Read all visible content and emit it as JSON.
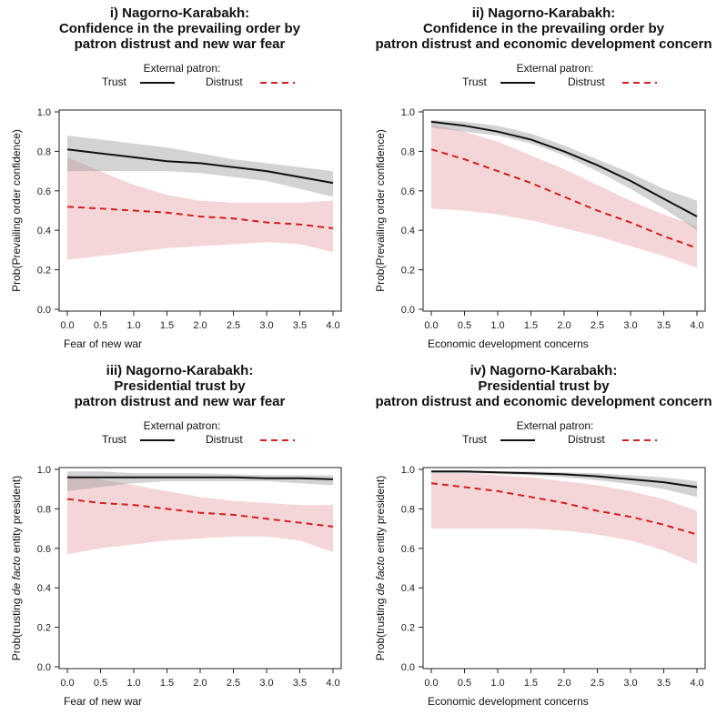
{
  "legend": {
    "title": "External patron:",
    "trust_label": "Trust",
    "distrust_label": "Distrust"
  },
  "colors": {
    "trust_line": "#111111",
    "trust_band": "#9e9e9e",
    "distrust_line": "#d21f1f",
    "distrust_band": "#e9a4a8"
  },
  "panels": [
    {
      "title_lines": [
        "i) Nagorno-Karabakh:",
        "Confidence in the prevailing order by",
        "patron distrust and new war fear"
      ],
      "xlabel": "Fear of new war",
      "ylabel": "Prob(Prevailing order confidence)"
    },
    {
      "title_lines": [
        "ii) Nagorno-Karabakh:",
        "Confidence in the prevailing order by",
        "patron distrust and economic development concern"
      ],
      "xlabel": "Economic development concerns",
      "ylabel": "Prob(Prevailing order confidence)"
    },
    {
      "title_lines": [
        "iii) Nagorno-Karabakh:",
        "Presidential trust by",
        "patron distrust and new war fear"
      ],
      "xlabel": "Fear of new war",
      "ylabel_parts": [
        "Prob(trusting ",
        "de facto",
        " entity president)"
      ]
    },
    {
      "title_lines": [
        "iv) Nagorno-Karabakh:",
        "Presidential trust by",
        "patron distrust and economic development concern"
      ],
      "xlabel": "Economic development concerns",
      "ylabel_parts": [
        "Prob(trusting ",
        "de facto",
        " entity president)"
      ]
    }
  ],
  "chart_data": [
    {
      "type": "line",
      "x": [
        0,
        0.5,
        1,
        1.5,
        2,
        2.5,
        3,
        3.5,
        4
      ],
      "xticks": [
        "0.0",
        "0.5",
        "1.0",
        "1.5",
        "2.0",
        "2.5",
        "3.0",
        "3.5",
        "4.0"
      ],
      "yticks": [
        "0.0",
        "0.2",
        "0.4",
        "0.6",
        "0.8",
        "1.0"
      ],
      "xlim": [
        0,
        4
      ],
      "ylim": [
        0,
        1
      ],
      "series": [
        {
          "name": "Trust",
          "style": "solid",
          "values": [
            0.81,
            0.79,
            0.77,
            0.75,
            0.74,
            0.72,
            0.7,
            0.67,
            0.64
          ],
          "lower": [
            0.7,
            0.7,
            0.7,
            0.7,
            0.69,
            0.67,
            0.65,
            0.61,
            0.57
          ],
          "upper": [
            0.88,
            0.86,
            0.84,
            0.82,
            0.79,
            0.76,
            0.74,
            0.72,
            0.7
          ]
        },
        {
          "name": "Distrust",
          "style": "dashed",
          "values": [
            0.52,
            0.51,
            0.5,
            0.49,
            0.47,
            0.46,
            0.44,
            0.43,
            0.41
          ],
          "lower": [
            0.25,
            0.27,
            0.29,
            0.31,
            0.32,
            0.33,
            0.34,
            0.33,
            0.29
          ],
          "upper": [
            0.77,
            0.7,
            0.63,
            0.58,
            0.55,
            0.54,
            0.54,
            0.54,
            0.55
          ]
        }
      ]
    },
    {
      "type": "line",
      "x": [
        0,
        0.5,
        1,
        1.5,
        2,
        2.5,
        3,
        3.5,
        4
      ],
      "xticks": [
        "0.0",
        "0.5",
        "1.0",
        "1.5",
        "2.0",
        "2.5",
        "3.0",
        "3.5",
        "4.0"
      ],
      "yticks": [
        "0.0",
        "0.2",
        "0.4",
        "0.6",
        "0.8",
        "1.0"
      ],
      "xlim": [
        0,
        4
      ],
      "ylim": [
        0,
        1
      ],
      "series": [
        {
          "name": "Trust",
          "style": "solid",
          "values": [
            0.95,
            0.93,
            0.9,
            0.86,
            0.8,
            0.73,
            0.65,
            0.56,
            0.47
          ],
          "lower": [
            0.92,
            0.9,
            0.88,
            0.84,
            0.78,
            0.7,
            0.61,
            0.51,
            0.4
          ],
          "upper": [
            0.96,
            0.95,
            0.93,
            0.89,
            0.83,
            0.76,
            0.69,
            0.61,
            0.55
          ]
        },
        {
          "name": "Distrust",
          "style": "dashed",
          "values": [
            0.81,
            0.76,
            0.7,
            0.64,
            0.57,
            0.5,
            0.44,
            0.37,
            0.31
          ],
          "lower": [
            0.51,
            0.5,
            0.48,
            0.45,
            0.41,
            0.37,
            0.32,
            0.27,
            0.21
          ],
          "upper": [
            0.94,
            0.9,
            0.85,
            0.78,
            0.71,
            0.63,
            0.55,
            0.48,
            0.42
          ]
        }
      ]
    },
    {
      "type": "line",
      "x": [
        0,
        0.5,
        1,
        1.5,
        2,
        2.5,
        3,
        3.5,
        4
      ],
      "xticks": [
        "0.0",
        "0.5",
        "1.0",
        "1.5",
        "2.0",
        "2.5",
        "3.0",
        "3.5",
        "4.0"
      ],
      "yticks": [
        "0.0",
        "0.2",
        "0.4",
        "0.6",
        "0.8",
        "1.0"
      ],
      "xlim": [
        0,
        4
      ],
      "ylim": [
        0,
        1
      ],
      "series": [
        {
          "name": "Trust",
          "style": "solid",
          "values": [
            0.96,
            0.96,
            0.96,
            0.96,
            0.96,
            0.96,
            0.955,
            0.955,
            0.95
          ],
          "lower": [
            0.89,
            0.91,
            0.93,
            0.94,
            0.94,
            0.94,
            0.94,
            0.93,
            0.92
          ],
          "upper": [
            0.99,
            0.99,
            0.98,
            0.98,
            0.98,
            0.975,
            0.97,
            0.97,
            0.97
          ]
        },
        {
          "name": "Distrust",
          "style": "dashed",
          "values": [
            0.85,
            0.83,
            0.82,
            0.8,
            0.78,
            0.77,
            0.75,
            0.73,
            0.71
          ],
          "lower": [
            0.57,
            0.6,
            0.62,
            0.64,
            0.65,
            0.66,
            0.66,
            0.64,
            0.58
          ],
          "upper": [
            0.97,
            0.95,
            0.92,
            0.89,
            0.86,
            0.84,
            0.83,
            0.82,
            0.82
          ]
        }
      ]
    },
    {
      "type": "line",
      "x": [
        0,
        0.5,
        1,
        1.5,
        2,
        2.5,
        3,
        3.5,
        4
      ],
      "xticks": [
        "0.0",
        "0.5",
        "1.0",
        "1.5",
        "2.0",
        "2.5",
        "3.0",
        "3.5",
        "4.0"
      ],
      "yticks": [
        "0.0",
        "0.2",
        "0.4",
        "0.6",
        "0.8",
        "1.0"
      ],
      "xlim": [
        0,
        4
      ],
      "ylim": [
        0,
        1
      ],
      "series": [
        {
          "name": "Trust",
          "style": "solid",
          "values": [
            0.99,
            0.99,
            0.985,
            0.98,
            0.975,
            0.965,
            0.95,
            0.935,
            0.91
          ],
          "lower": [
            0.98,
            0.98,
            0.975,
            0.97,
            0.96,
            0.945,
            0.925,
            0.9,
            0.86
          ],
          "upper": [
            0.995,
            0.995,
            0.99,
            0.99,
            0.985,
            0.98,
            0.97,
            0.96,
            0.94
          ]
        },
        {
          "name": "Distrust",
          "style": "dashed",
          "values": [
            0.93,
            0.91,
            0.89,
            0.86,
            0.83,
            0.79,
            0.76,
            0.72,
            0.67
          ],
          "lower": [
            0.7,
            0.7,
            0.7,
            0.7,
            0.69,
            0.67,
            0.64,
            0.59,
            0.52
          ],
          "upper": [
            0.98,
            0.98,
            0.97,
            0.96,
            0.94,
            0.92,
            0.89,
            0.85,
            0.79
          ]
        }
      ]
    }
  ]
}
